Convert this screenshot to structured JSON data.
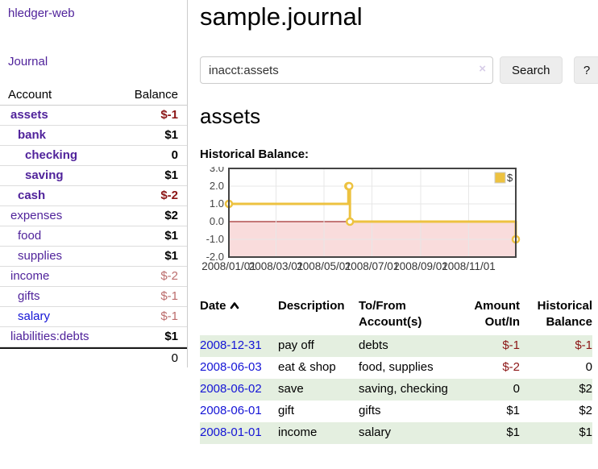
{
  "app": {
    "title": "hledger-web",
    "nav_journal": "Journal"
  },
  "sidebar": {
    "header": {
      "account": "Account",
      "balance": "Balance"
    },
    "accounts": [
      {
        "name": "assets",
        "depth": 1,
        "bold": true,
        "link_color": "purple",
        "balance": "$-1",
        "balance_color": "neg-strong"
      },
      {
        "name": "bank",
        "depth": 2,
        "bold": true,
        "link_color": "purple",
        "balance": "$1",
        "balance_color": "normal"
      },
      {
        "name": "checking",
        "depth": 3,
        "bold": true,
        "link_color": "purple",
        "balance": "0",
        "balance_color": "normal"
      },
      {
        "name": "saving",
        "depth": 3,
        "bold": true,
        "link_color": "purple",
        "balance": "$1",
        "balance_color": "normal"
      },
      {
        "name": "cash",
        "depth": 2,
        "bold": true,
        "link_color": "purple",
        "balance": "$-2",
        "balance_color": "neg-strong"
      },
      {
        "name": "expenses",
        "depth": 1,
        "bold": false,
        "link_color": "purple",
        "balance": "$2",
        "balance_color": "normal"
      },
      {
        "name": "food",
        "depth": 2,
        "bold": false,
        "link_color": "purple",
        "balance": "$1",
        "balance_color": "normal"
      },
      {
        "name": "supplies",
        "depth": 2,
        "bold": false,
        "link_color": "purple",
        "balance": "$1",
        "balance_color": "normal"
      },
      {
        "name": "income",
        "depth": 1,
        "bold": false,
        "link_color": "purple",
        "balance": "$-2",
        "balance_color": "neg-soft"
      },
      {
        "name": "gifts",
        "depth": 2,
        "bold": false,
        "link_color": "purple",
        "balance": "$-1",
        "balance_color": "neg-soft"
      },
      {
        "name": "salary",
        "depth": 2,
        "bold": false,
        "link_color": "blue",
        "balance": "$-1",
        "balance_color": "neg-soft"
      },
      {
        "name": "liabilities:debts",
        "depth": 1,
        "bold": false,
        "link_color": "purple",
        "balance": "$1",
        "balance_color": "normal"
      }
    ],
    "total": "0"
  },
  "header": {
    "title": "sample.journal"
  },
  "search": {
    "value": "inacct:assets",
    "clear_icon": "×",
    "button_label": "Search",
    "help_label": "?"
  },
  "account_page": {
    "title": "assets",
    "chart_label": "Historical Balance:"
  },
  "chart_data": {
    "type": "line",
    "step": true,
    "title": "Historical Balance",
    "series": [
      {
        "name": "$",
        "color": "#edc240",
        "x": [
          "2008-01-01",
          "2008-06-01",
          "2008-06-02",
          "2008-06-03",
          "2008-12-31"
        ],
        "y": [
          1,
          2,
          2,
          0,
          -1
        ]
      }
    ],
    "xlim": [
      "2008-01-01",
      "2008-12-31"
    ],
    "ylim": [
      -2,
      3
    ],
    "yticks": [
      {
        "v": 3,
        "label": "3.0"
      },
      {
        "v": 2,
        "label": "2.0"
      },
      {
        "v": 1,
        "label": "1.0"
      },
      {
        "v": 0,
        "label": "0.0"
      },
      {
        "v": -1,
        "label": "-1.0"
      },
      {
        "v": -2,
        "label": "-2.0"
      }
    ],
    "xticks": [
      {
        "date": "2008-01-01",
        "label": "2008/01/01"
      },
      {
        "date": "2008-03-01",
        "label": "2008/03/01"
      },
      {
        "date": "2008-05-01",
        "label": "2008/05/01"
      },
      {
        "date": "2008-07-01",
        "label": "2008/07/01"
      },
      {
        "date": "2008-09-01",
        "label": "2008/09/01"
      },
      {
        "date": "2008-11-01",
        "label": "2008/11/01"
      }
    ],
    "legend": {
      "label": "$",
      "position": "top-right"
    },
    "grid": true,
    "negative_region_color": "#f9dcdc",
    "zero_line_color": "#8b0000",
    "border_color": "#444444",
    "grid_color": "#e7e7e7"
  },
  "transactions": {
    "headers": [
      "Date",
      "Description",
      "To/From Account(s)",
      "Amount Out/In",
      "Historical Balance"
    ],
    "rows": [
      {
        "date": "2008-12-31",
        "description": "pay off",
        "accounts": "debts",
        "amount": "$-1",
        "amount_negative": true,
        "balance": "$-1",
        "balance_negative": true
      },
      {
        "date": "2008-06-03",
        "description": "eat & shop",
        "accounts": "food, supplies",
        "amount": "$-2",
        "amount_negative": true,
        "balance": "0",
        "balance_negative": false
      },
      {
        "date": "2008-06-02",
        "description": "save",
        "accounts": "saving, checking",
        "amount": "0",
        "amount_negative": false,
        "balance": "$2",
        "balance_negative": false
      },
      {
        "date": "2008-06-01",
        "description": "gift",
        "accounts": "gifts",
        "amount": "$1",
        "amount_negative": false,
        "balance": "$2",
        "balance_negative": false
      },
      {
        "date": "2008-01-01",
        "description": "income",
        "accounts": "salary",
        "amount": "$1",
        "amount_negative": false,
        "balance": "$1",
        "balance_negative": false
      }
    ]
  }
}
